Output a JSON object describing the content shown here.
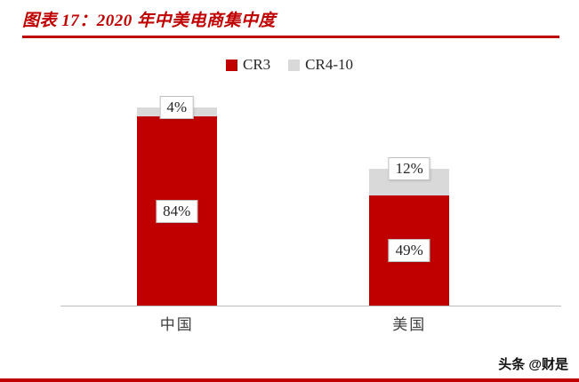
{
  "title": "图表 17：2020 年中美电商集中度",
  "watermark": "头条 @财是",
  "colors": {
    "accent": "#C00000",
    "series_gray": "#D9D9D9",
    "axis_line": "#BFBFBF"
  },
  "chart_data": {
    "type": "bar",
    "stacked": true,
    "title": "2020 年中美电商集中度",
    "categories": [
      "中国",
      "美国"
    ],
    "series": [
      {
        "name": "CR3",
        "color": "#C00000",
        "values": [
          84,
          49
        ]
      },
      {
        "name": "CR4-10",
        "color": "#D9D9D9",
        "values": [
          4,
          12
        ]
      }
    ],
    "value_labels": true,
    "ylim": [
      0,
      100
    ],
    "legend_position": "top",
    "grid": false
  }
}
